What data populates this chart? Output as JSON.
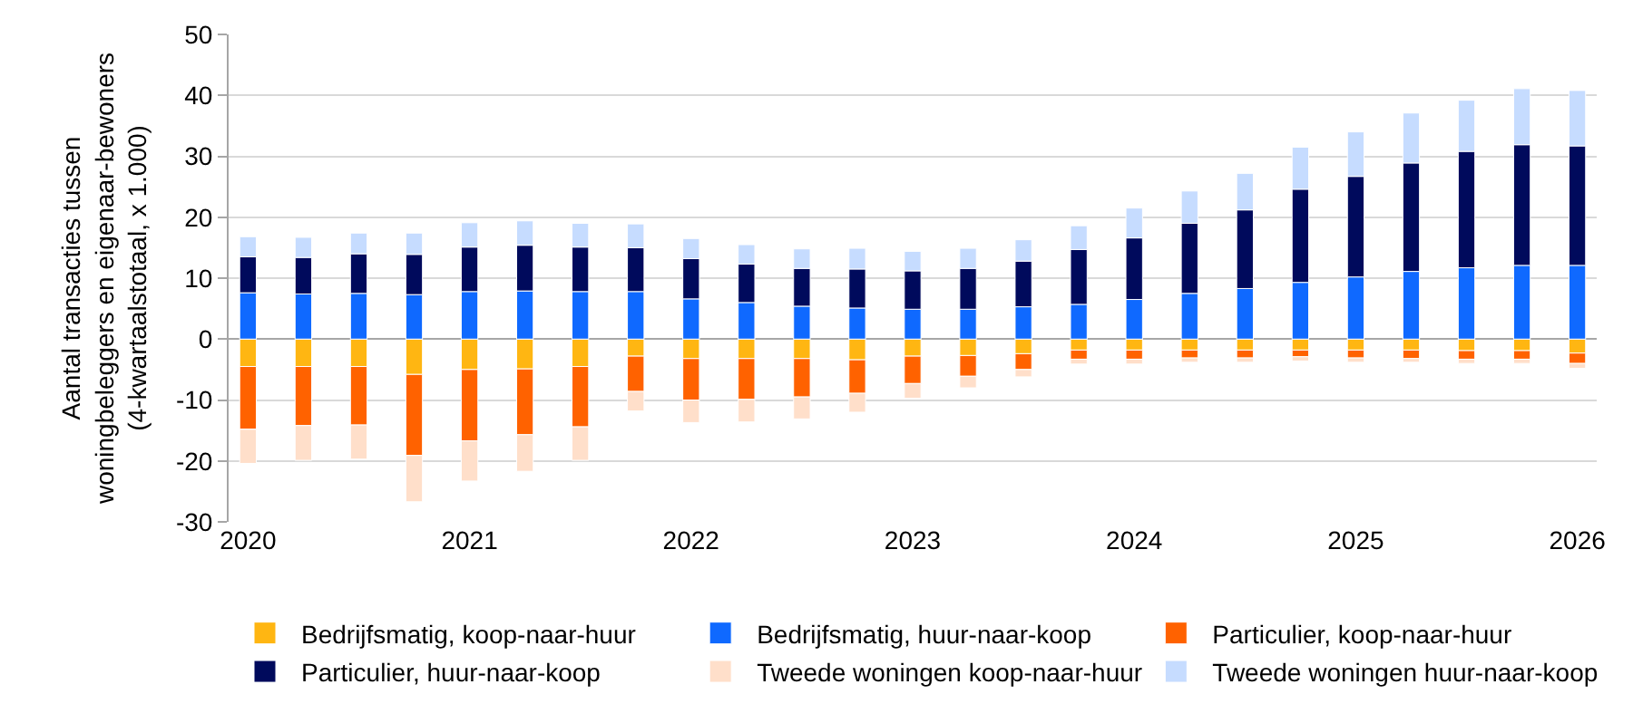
{
  "chart_data": {
    "type": "bar",
    "stacked": true,
    "ylabel": "Aantal transacties tussen woningbeleggers en eigenaar-bewoners (4-kwartaalstotaal, x 1.000)",
    "categories": [
      "2020",
      null,
      null,
      null,
      "2021",
      null,
      null,
      null,
      "2022",
      null,
      null,
      null,
      "2023",
      null,
      null,
      null,
      "2024",
      null,
      null,
      null,
      "2025",
      null,
      null,
      null,
      "2026"
    ],
    "series": [
      {
        "name": "Bedrijfsmatig, koop-naar-huur",
        "color": "#ffb612",
        "values": [
          -4.5,
          -4.5,
          -4.5,
          -5.8,
          -5.0,
          -4.9,
          -4.5,
          -2.8,
          -3.2,
          -3.2,
          -3.2,
          -3.4,
          -2.8,
          -2.7,
          -2.4,
          -1.8,
          -1.8,
          -1.8,
          -1.8,
          -1.8,
          -1.8,
          -1.8,
          -1.9,
          -1.9,
          -2.3
        ]
      },
      {
        "name": "Bedrijfsmatig, huur-naar-koop",
        "color": "#0f69ff",
        "values": [
          7.6,
          7.4,
          7.5,
          7.3,
          7.8,
          7.9,
          7.8,
          7.8,
          6.6,
          6.0,
          5.4,
          5.1,
          4.9,
          4.9,
          5.3,
          5.7,
          6.5,
          7.5,
          8.3,
          9.3,
          10.2,
          11.1,
          11.7,
          12.1,
          12.1
        ]
      },
      {
        "name": "Particulier, koop-naar-huur",
        "color": "#ff6200",
        "values": [
          -10.3,
          -9.7,
          -9.6,
          -13.3,
          -11.7,
          -10.8,
          -9.9,
          -5.8,
          -6.8,
          -6.7,
          -6.3,
          -5.5,
          -4.5,
          -3.4,
          -2.6,
          -1.5,
          -1.5,
          -1.3,
          -1.3,
          -1.1,
          -1.3,
          -1.4,
          -1.4,
          -1.4,
          -1.7
        ]
      },
      {
        "name": "Particulier, huur-naar-koop",
        "color": "#000a5c",
        "values": [
          5.9,
          6.0,
          6.5,
          6.6,
          7.3,
          7.5,
          7.3,
          7.2,
          6.6,
          6.3,
          6.2,
          6.4,
          6.3,
          6.7,
          7.5,
          9.0,
          10.1,
          11.5,
          12.9,
          15.3,
          16.5,
          17.8,
          19.1,
          19.8,
          19.6
        ]
      },
      {
        "name": "Tweede woningen koop-naar-huur",
        "color": "#ffdfca",
        "values": [
          -5.6,
          -5.7,
          -5.6,
          -7.6,
          -6.6,
          -6.0,
          -5.5,
          -3.2,
          -3.7,
          -3.7,
          -3.6,
          -3.1,
          -2.4,
          -1.9,
          -1.2,
          -0.8,
          -0.8,
          -0.7,
          -0.7,
          -0.7,
          -0.7,
          -0.6,
          -0.7,
          -0.7,
          -0.8
        ]
      },
      {
        "name": "Tweede woningen huur-naar-koop",
        "color": "#c6dcff",
        "values": [
          3.3,
          3.3,
          3.4,
          3.5,
          4.0,
          4.0,
          3.9,
          3.9,
          3.3,
          3.2,
          3.2,
          3.4,
          3.2,
          3.3,
          3.5,
          3.9,
          4.9,
          5.3,
          6.0,
          6.9,
          7.3,
          8.2,
          8.4,
          9.2,
          9.1
        ]
      }
    ],
    "ylim": [
      -30,
      50
    ],
    "yticks": [
      -30,
      -20,
      -10,
      0,
      10,
      20,
      30,
      40,
      50
    ],
    "grid": "y",
    "legend": "bottom"
  }
}
